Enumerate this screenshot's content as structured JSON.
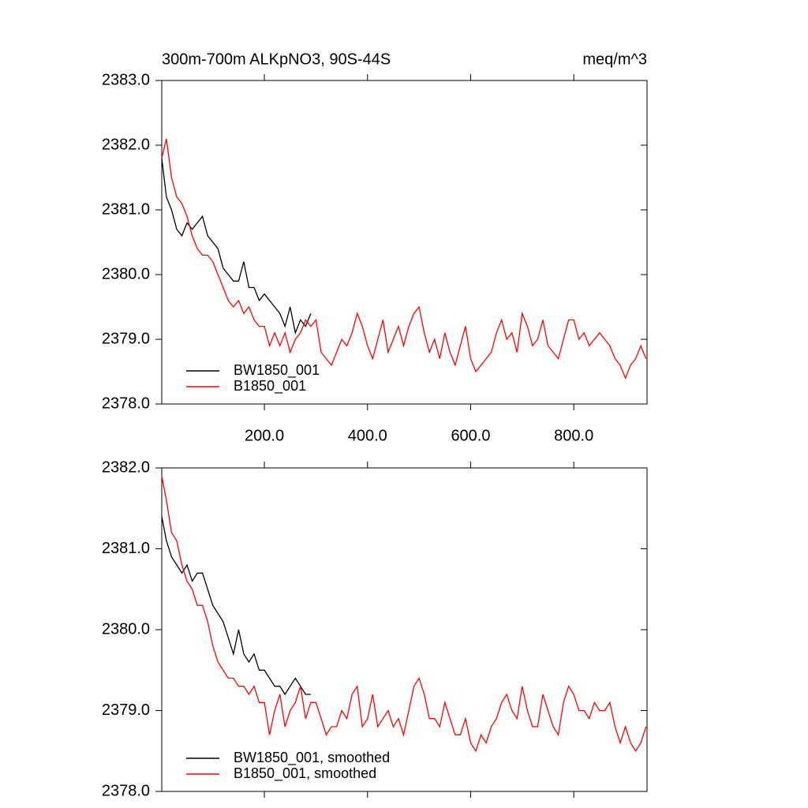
{
  "chart_data": [
    {
      "type": "line",
      "title": "300m-700m ALKpNO3, 90S-44S",
      "units": "meq/m^3",
      "x": [
        1,
        10,
        20,
        30,
        40,
        50,
        60,
        70,
        80,
        90,
        100,
        110,
        120,
        130,
        140,
        150,
        160,
        170,
        180,
        190,
        200,
        210,
        220,
        230,
        240,
        250,
        260,
        270,
        280,
        290,
        300,
        310,
        320,
        330,
        340,
        350,
        360,
        370,
        380,
        390,
        400,
        410,
        420,
        430,
        440,
        450,
        460,
        470,
        480,
        490,
        500,
        510,
        520,
        530,
        540,
        550,
        560,
        570,
        580,
        590,
        600,
        610,
        620,
        630,
        640,
        650,
        660,
        670,
        680,
        690,
        700,
        710,
        720,
        730,
        740,
        750,
        760,
        770,
        780,
        790,
        800,
        810,
        820,
        830,
        840,
        850,
        860,
        870,
        880,
        890,
        900,
        910,
        920,
        930,
        940
      ],
      "series": [
        {
          "name": "BW1850_001",
          "color": "#000000",
          "values": [
            2381.8,
            2381.2,
            2381.0,
            2380.7,
            2380.6,
            2380.8,
            2380.7,
            2380.8,
            2380.9,
            2380.6,
            2380.5,
            2380.4,
            2380.1,
            2380.0,
            2379.9,
            2379.9,
            2380.2,
            2379.8,
            2379.8,
            2379.6,
            2379.7,
            2379.6,
            2379.5,
            2379.4,
            2379.2,
            2379.5,
            2379.1,
            2379.3,
            2379.2,
            2379.4,
            null,
            null,
            null,
            null,
            null,
            null,
            null,
            null,
            null,
            null,
            null,
            null,
            null,
            null,
            null,
            null,
            null,
            null,
            null,
            null,
            null,
            null,
            null,
            null,
            null,
            null,
            null,
            null,
            null,
            null,
            null,
            null,
            null,
            null,
            null,
            null,
            null,
            null,
            null,
            null,
            null,
            null,
            null,
            null,
            null,
            null,
            null,
            null,
            null,
            null,
            null,
            null,
            null,
            null,
            null,
            null,
            null,
            null,
            null,
            null,
            null,
            null,
            null,
            null,
            null
          ]
        },
        {
          "name": "B1850_001",
          "color": "#ff0000",
          "values": [
            2381.8,
            2382.1,
            2381.5,
            2381.2,
            2381.1,
            2380.9,
            2380.6,
            2380.4,
            2380.3,
            2380.3,
            2380.2,
            2380.0,
            2379.8,
            2379.6,
            2379.5,
            2379.6,
            2379.4,
            2379.5,
            2379.3,
            2379.2,
            2379.2,
            2378.9,
            2379.1,
            2378.9,
            2379.1,
            2378.8,
            2379.0,
            2379.1,
            2379.3,
            2379.2,
            2379.3,
            2378.8,
            2378.7,
            2378.6,
            2378.8,
            2379.0,
            2378.9,
            2379.1,
            2379.4,
            2379.2,
            2378.9,
            2378.7,
            2379.0,
            2379.3,
            2378.8,
            2379.0,
            2379.2,
            2378.9,
            2379.2,
            2379.4,
            2379.5,
            2379.1,
            2378.8,
            2379.0,
            2378.7,
            2379.1,
            2378.8,
            2378.6,
            2378.9,
            2379.2,
            2378.7,
            2378.5,
            2378.6,
            2378.7,
            2378.8,
            2379.1,
            2379.3,
            2379.0,
            2379.1,
            2378.8,
            2379.4,
            2379.2,
            2378.9,
            2379.0,
            2379.3,
            2378.9,
            2378.8,
            2378.7,
            2379.0,
            2379.3,
            2379.3,
            2379.0,
            2379.1,
            2378.9,
            2379.0,
            2379.1,
            2379.0,
            2378.9,
            2378.7,
            2378.6,
            2378.4,
            2378.6,
            2378.7,
            2378.9,
            2378.7
          ]
        }
      ],
      "xlim": [
        1,
        942
      ],
      "xticks": [
        {
          "value": 200,
          "label": "200.0"
        },
        {
          "value": 400,
          "label": "400.0"
        },
        {
          "value": 600,
          "label": "600.0"
        },
        {
          "value": 800,
          "label": "800.0"
        }
      ],
      "ylim": [
        2378,
        2383
      ],
      "yticks": [
        {
          "value": 2378,
          "label": "2378.0"
        },
        {
          "value": 2379,
          "label": "2379.0"
        },
        {
          "value": 2380,
          "label": "2380.0"
        },
        {
          "value": 2381,
          "label": "2381.0"
        },
        {
          "value": 2382,
          "label": "2382.0"
        },
        {
          "value": 2383,
          "label": "2383.0"
        }
      ],
      "legend": "lower left",
      "grid": false
    },
    {
      "type": "line",
      "x": [
        1,
        10,
        20,
        30,
        40,
        50,
        60,
        70,
        80,
        90,
        100,
        110,
        120,
        130,
        140,
        150,
        160,
        170,
        180,
        190,
        200,
        210,
        220,
        230,
        240,
        250,
        260,
        270,
        280,
        290,
        300,
        310,
        320,
        330,
        340,
        350,
        360,
        370,
        380,
        390,
        400,
        410,
        420,
        430,
        440,
        450,
        460,
        470,
        480,
        490,
        500,
        510,
        520,
        530,
        540,
        550,
        560,
        570,
        580,
        590,
        600,
        610,
        620,
        630,
        640,
        650,
        660,
        670,
        680,
        690,
        700,
        710,
        720,
        730,
        740,
        750,
        760,
        770,
        780,
        790,
        800,
        810,
        820,
        830,
        840,
        850,
        860,
        870,
        880,
        890,
        900,
        910,
        920,
        930,
        940
      ],
      "series": [
        {
          "name": "BW1850_001, smoothed",
          "color": "#000000",
          "values": [
            2381.4,
            2381.1,
            2380.9,
            2380.8,
            2380.7,
            2380.8,
            2380.6,
            2380.7,
            2380.7,
            2380.5,
            2380.3,
            2380.2,
            2380.1,
            2379.9,
            2379.7,
            2380.0,
            2379.7,
            2379.6,
            2379.7,
            2379.5,
            2379.5,
            2379.4,
            2379.3,
            2379.3,
            2379.2,
            2379.3,
            2379.4,
            2379.3,
            2379.2,
            2379.2,
            null,
            null,
            null,
            null,
            null,
            null,
            null,
            null,
            null,
            null,
            null,
            null,
            null,
            null,
            null,
            null,
            null,
            null,
            null,
            null,
            null,
            null,
            null,
            null,
            null,
            null,
            null,
            null,
            null,
            null,
            null,
            null,
            null,
            null,
            null,
            null,
            null,
            null,
            null,
            null,
            null,
            null,
            null,
            null,
            null,
            null,
            null,
            null,
            null,
            null,
            null,
            null,
            null,
            null,
            null,
            null,
            null,
            null,
            null,
            null,
            null,
            null,
            null,
            null,
            null
          ]
        },
        {
          "name": "B1850_001, smoothed",
          "color": "#ff0000",
          "values": [
            2381.9,
            2381.6,
            2381.2,
            2381.1,
            2380.8,
            2380.6,
            2380.5,
            2380.3,
            2380.3,
            2380.1,
            2379.8,
            2379.6,
            2379.5,
            2379.4,
            2379.4,
            2379.3,
            2379.3,
            2379.2,
            2379.3,
            2379.1,
            2379.1,
            2378.7,
            2379.0,
            2379.2,
            2378.8,
            2379.0,
            2379.1,
            2379.3,
            2378.9,
            2379.1,
            2379.1,
            2378.9,
            2378.7,
            2378.8,
            2378.8,
            2379.0,
            2378.9,
            2379.2,
            2379.3,
            2378.8,
            2378.9,
            2379.2,
            2378.8,
            2378.9,
            2379.0,
            2378.8,
            2378.9,
            2378.7,
            2379.0,
            2379.3,
            2379.4,
            2379.2,
            2378.9,
            2378.9,
            2378.8,
            2379.1,
            2378.9,
            2378.7,
            2378.7,
            2378.9,
            2378.6,
            2378.5,
            2378.7,
            2378.6,
            2378.8,
            2378.9,
            2379.1,
            2379.2,
            2379.0,
            2378.9,
            2379.3,
            2379.0,
            2378.8,
            2378.8,
            2379.2,
            2379.0,
            2378.8,
            2378.7,
            2379.1,
            2379.3,
            2379.2,
            2379.0,
            2379.0,
            2378.9,
            2379.1,
            2379.0,
            2379.0,
            2379.1,
            2378.8,
            2378.6,
            2378.8,
            2378.6,
            2378.5,
            2378.6,
            2378.8
          ]
        }
      ],
      "xlim": [
        1,
        942
      ],
      "xticks": [
        200,
        400,
        600,
        800
      ],
      "ylim": [
        2378,
        2382
      ],
      "yticks": [
        {
          "value": 2378,
          "label": "2378.0"
        },
        {
          "value": 2379,
          "label": "2379.0"
        },
        {
          "value": 2380,
          "label": "2380.0"
        },
        {
          "value": 2381,
          "label": "2381.0"
        },
        {
          "value": 2382,
          "label": "2382.0"
        }
      ],
      "legend": "lower left",
      "grid": false
    }
  ]
}
